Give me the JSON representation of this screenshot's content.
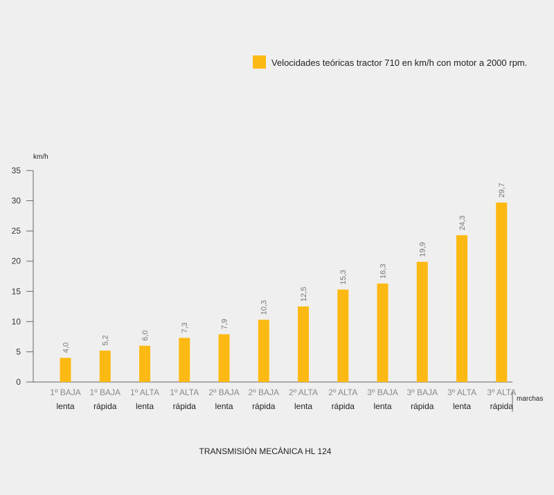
{
  "chart_data": {
    "type": "bar",
    "legend": "Velocidades teóricas tractor 710 en km/h con motor a 2000 rpm.",
    "ylabel": "km/h",
    "xlabel": "marchas",
    "caption": "TRANSMISIÓN MECÁNICA HL 124",
    "ylim": [
      0,
      35
    ],
    "yticks": [
      "0",
      "5",
      "10",
      "15",
      "20",
      "25",
      "30",
      "35"
    ],
    "categories": [
      {
        "top": "1º BAJA",
        "bottom": "lenta"
      },
      {
        "top": "1º BAJA",
        "bottom": "rápida"
      },
      {
        "top": "1º ALTA",
        "bottom": "lenta"
      },
      {
        "top": "1º ALTA",
        "bottom": "rápida"
      },
      {
        "top": "2º BAJA",
        "bottom": "lenta"
      },
      {
        "top": "2º BAJA",
        "bottom": "rápida"
      },
      {
        "top": "2º ALTA",
        "bottom": "lenta"
      },
      {
        "top": "2º ALTA",
        "bottom": "rápida"
      },
      {
        "top": "3º BAJA",
        "bottom": "lenta"
      },
      {
        "top": "3º BAJA",
        "bottom": "rápida"
      },
      {
        "top": "3º ALTA",
        "bottom": "lenta"
      },
      {
        "top": "3º ALTA",
        "bottom": "rápida"
      }
    ],
    "values": [
      4.0,
      5.2,
      6.0,
      7.3,
      7.9,
      10.3,
      12.5,
      15.3,
      16.3,
      19.9,
      24.3,
      29.7
    ],
    "value_labels": [
      "4,0",
      "5,2",
      "6,0",
      "7,3",
      "7,9",
      "10,3",
      "12,5",
      "15,3",
      "16,3",
      "19,9",
      "24,3",
      "29,7"
    ],
    "bar_color": "#fdb913",
    "axis_color": "#666666"
  }
}
